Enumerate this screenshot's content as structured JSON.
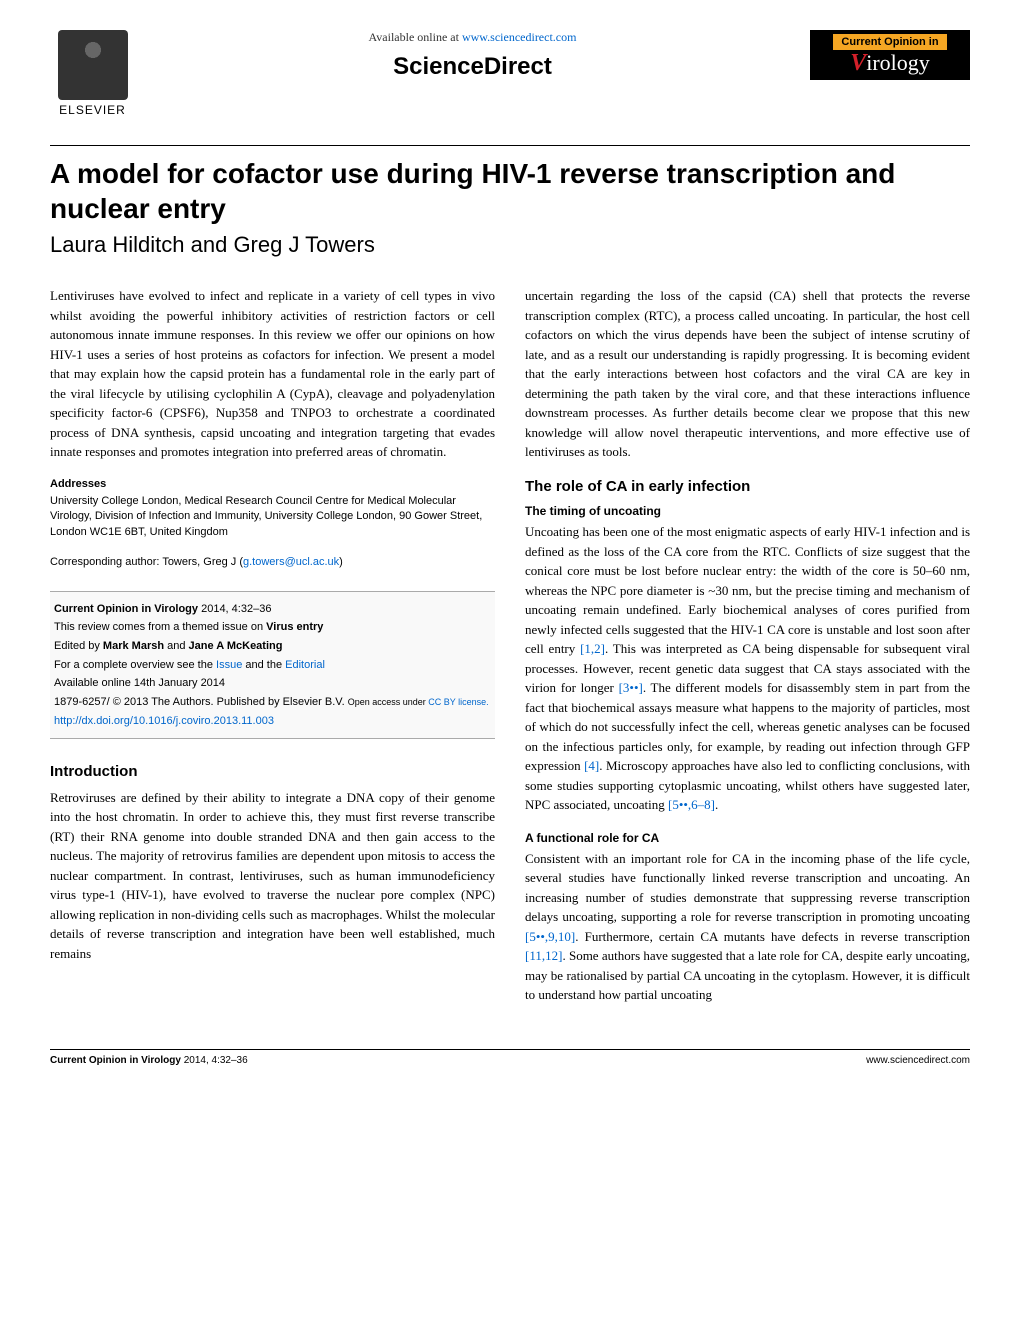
{
  "header": {
    "available_online": "Available online at",
    "sciencedirect_url": "www.sciencedirect.com",
    "sciencedirect_label": "ScienceDirect",
    "elsevier_label": "ELSEVIER",
    "virology_top": "Current Opinion in",
    "virology_v": "V",
    "virology_rest": "irology"
  },
  "title": "A model for cofactor use during HIV-1 reverse transcription and nuclear entry",
  "authors": "Laura Hilditch and Greg J Towers",
  "abstract": "Lentiviruses have evolved to infect and replicate in a variety of cell types in vivo whilst avoiding the powerful inhibitory activities of restriction factors or cell autonomous innate immune responses. In this review we offer our opinions on how HIV-1 uses a series of host proteins as cofactors for infection. We present a model that may explain how the capsid protein has a fundamental role in the early part of the viral lifecycle by utilising cyclophilin A (CypA), cleavage and polyadenylation specificity factor-6 (CPSF6), Nup358 and TNPO3 to orchestrate a coordinated process of DNA synthesis, capsid uncoating and integration targeting that evades innate responses and promotes integration into preferred areas of chromatin.",
  "addresses_heading": "Addresses",
  "addresses": "University College London, Medical Research Council Centre for Medical Molecular Virology, Division of Infection and Immunity, University College London, 90 Gower Street, London WC1E 6BT, United Kingdom",
  "corresponding_label": "Corresponding author: Towers, Greg J (",
  "corresponding_email": "g.towers@ucl.ac.uk",
  "corresponding_close": ")",
  "info_box": {
    "journal_bold": "Current Opinion in Virology",
    "journal_rest": " 2014, 4:32–36",
    "themed_issue_pre": "This review comes from a themed issue on ",
    "themed_issue_bold": "Virus entry",
    "edited_pre": "Edited by ",
    "editor1": "Mark Marsh",
    "edited_and": " and ",
    "editor2": "Jane A McKeating",
    "overview_pre": "For a complete overview see the ",
    "issue_link": "Issue",
    "overview_and": " and the ",
    "editorial_link": "Editorial",
    "available_online": "Available online 14th January 2014",
    "copyright": "1879-6257/ © 2013 The Authors. Published by Elsevier B.V.",
    "open_access_pre": "Open access under ",
    "license_link": "CC BY license.",
    "doi": "http://dx.doi.org/10.1016/j.coviro.2013.11.003"
  },
  "sections": {
    "intro_heading": "Introduction",
    "intro_text": "Retroviruses are defined by their ability to integrate a DNA copy of their genome into the host chromatin. In order to achieve this, they must first reverse transcribe (RT) their RNA genome into double stranded DNA and then gain access to the nucleus. The majority of retrovirus families are dependent upon mitosis to access the nuclear compartment. In contrast, lentiviruses, such as human immunodeficiency virus type-1 (HIV-1), have evolved to traverse the nuclear pore complex (NPC) allowing replication in non-dividing cells such as macrophages. Whilst the molecular details of reverse transcription and integration have been well established, much remains",
    "col2_para1": "uncertain regarding the loss of the capsid (CA) shell that protects the reverse transcription complex (RTC), a process called uncoating. In particular, the host cell cofactors on which the virus depends have been the subject of intense scrutiny of late, and as a result our understanding is rapidly progressing. It is becoming evident that the early interactions between host cofactors and the viral CA are key in determining the path taken by the viral core, and that these interactions influence downstream processes. As further details become clear we propose that this new knowledge will allow novel therapeutic interventions, and more effective use of lentiviruses as tools.",
    "role_heading": "The role of CA in early infection",
    "timing_heading": "The timing of uncoating",
    "timing_text_pre": "Uncoating has been one of the most enigmatic aspects of early HIV-1 infection and is defined as the loss of the CA core from the RTC. Conflicts of size suggest that the conical core must be lost before nuclear entry: the width of the core is 50–60 nm, whereas the NPC pore diameter is ~30 nm, but the precise timing and mechanism of uncoating remain undefined. Early biochemical analyses of cores purified from newly infected cells suggested that the HIV-1 CA core is unstable and lost soon after cell entry ",
    "timing_ref1": "[1,2]",
    "timing_text_mid1": ". This was interpreted as CA being dispensable for subsequent viral processes. However, recent genetic data suggest that CA stays associated with the virion for longer ",
    "timing_ref2": "[3••]",
    "timing_text_mid2": ". The different models for disassembly stem in part from the fact that biochemical assays measure what happens to the majority of particles, most of which do not successfully infect the cell, whereas genetic analyses can be focused on the infectious particles only, for example, by reading out infection through GFP expression ",
    "timing_ref3": "[4]",
    "timing_text_mid3": ". Microscopy approaches have also led to conflicting conclusions, with some studies supporting cytoplasmic uncoating, whilst others have suggested later, NPC associated, uncoating ",
    "timing_ref4": "[5••,6–8]",
    "timing_text_end": ".",
    "functional_heading": "A functional role for CA",
    "functional_text_pre": "Consistent with an important role for CA in the incoming phase of the life cycle, several studies have functionally linked reverse transcription and uncoating. An increasing number of studies demonstrate that suppressing reverse transcription delays uncoating, supporting a role for reverse transcription in promoting uncoating ",
    "functional_ref1": "[5••,9,10]",
    "functional_text_mid1": ". Furthermore, certain CA mutants have defects in reverse transcription ",
    "functional_ref2": "[11,12]",
    "functional_text_end": ". Some authors have suggested that a late role for CA, despite early uncoating, may be rationalised by partial CA uncoating in the cytoplasm. However, it is difficult to understand how partial uncoating"
  },
  "footer": {
    "left_bold": "Current Opinion in Virology",
    "left_rest": " 2014, 4:32–36",
    "right": "www.sciencedirect.com"
  }
}
